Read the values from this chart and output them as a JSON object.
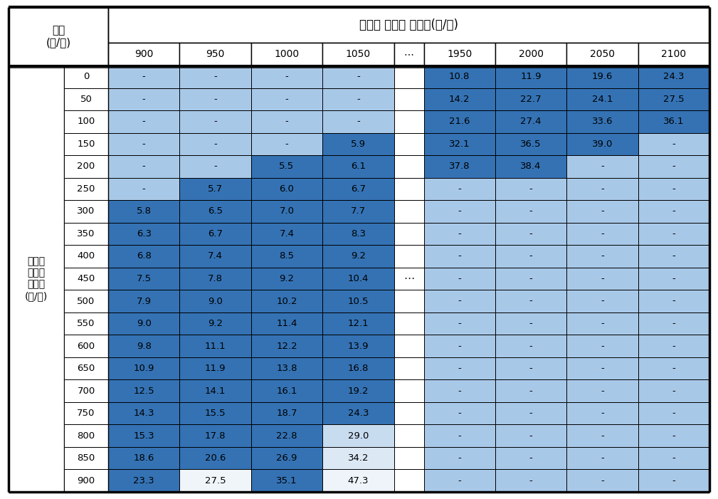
{
  "header_left": "지체\n(초/대)",
  "header_right": "양방향 주도로 교통량(대/시)",
  "col_headers": [
    "900",
    "950",
    "1000",
    "1050",
    "⋯",
    "1950",
    "2000",
    "2050",
    "2100"
  ],
  "row_headers": [
    "0",
    "50",
    "100",
    "150",
    "200",
    "250",
    "300",
    "350",
    "400",
    "450",
    "500",
    "550",
    "600",
    "650",
    "700",
    "750",
    "800",
    "850",
    "900"
  ],
  "left_label_lines": [
    "양방향",
    "부도로",
    "교통량",
    "(대/시)"
  ],
  "table_data": [
    [
      "-",
      "-",
      "-",
      "-",
      "",
      "10.8",
      "11.9",
      "19.6",
      "24.3"
    ],
    [
      "-",
      "-",
      "-",
      "-",
      "",
      "14.2",
      "22.7",
      "24.1",
      "27.5"
    ],
    [
      "-",
      "-",
      "-",
      "-",
      "",
      "21.6",
      "27.4",
      "33.6",
      "36.1"
    ],
    [
      "-",
      "-",
      "-",
      "5.9",
      "",
      "32.1",
      "36.5",
      "39.0",
      "-"
    ],
    [
      "-",
      "-",
      "5.5",
      "6.1",
      "",
      "37.8",
      "38.4",
      "-",
      "-"
    ],
    [
      "-",
      "5.7",
      "6.0",
      "6.7",
      "",
      "-",
      "-",
      "-",
      "-"
    ],
    [
      "5.8",
      "6.5",
      "7.0",
      "7.7",
      "",
      "-",
      "-",
      "-",
      "-"
    ],
    [
      "6.3",
      "6.7",
      "7.4",
      "8.3",
      "",
      "-",
      "-",
      "-",
      "-"
    ],
    [
      "6.8",
      "7.4",
      "8.5",
      "9.2",
      "",
      "-",
      "-",
      "-",
      "-"
    ],
    [
      "7.5",
      "7.8",
      "9.2",
      "10.4",
      "",
      "-",
      "-",
      "-",
      "-"
    ],
    [
      "7.9",
      "9.0",
      "10.2",
      "10.5",
      "",
      "-",
      "-",
      "-",
      "-"
    ],
    [
      "9.0",
      "9.2",
      "11.4",
      "12.1",
      "",
      "-",
      "-",
      "-",
      "-"
    ],
    [
      "9.8",
      "11.1",
      "12.2",
      "13.9",
      "",
      "-",
      "-",
      "-",
      "-"
    ],
    [
      "10.9",
      "11.9",
      "13.8",
      "16.8",
      "",
      "-",
      "-",
      "-",
      "-"
    ],
    [
      "12.5",
      "14.1",
      "16.1",
      "19.2",
      "",
      "-",
      "-",
      "-",
      "-"
    ],
    [
      "14.3",
      "15.5",
      "18.7",
      "24.3",
      "",
      "-",
      "-",
      "-",
      "-"
    ],
    [
      "15.3",
      "17.8",
      "22.8",
      "29.0",
      "",
      "-",
      "-",
      "-",
      "-"
    ],
    [
      "18.6",
      "20.6",
      "26.9",
      "34.2",
      "",
      "-",
      "-",
      "-",
      "-"
    ],
    [
      "23.3",
      "27.5",
      "35.1",
      "47.3",
      "",
      "-",
      "-",
      "-",
      "-"
    ]
  ],
  "color_dark_blue": "#3472B4",
  "color_light_blue": "#A8C8E8",
  "color_white": "#FFFFFF",
  "border_color": "#000000",
  "ellipsis_col_idx": 4,
  "n_data_rows": 19,
  "ellipsis_row_idx": 9
}
